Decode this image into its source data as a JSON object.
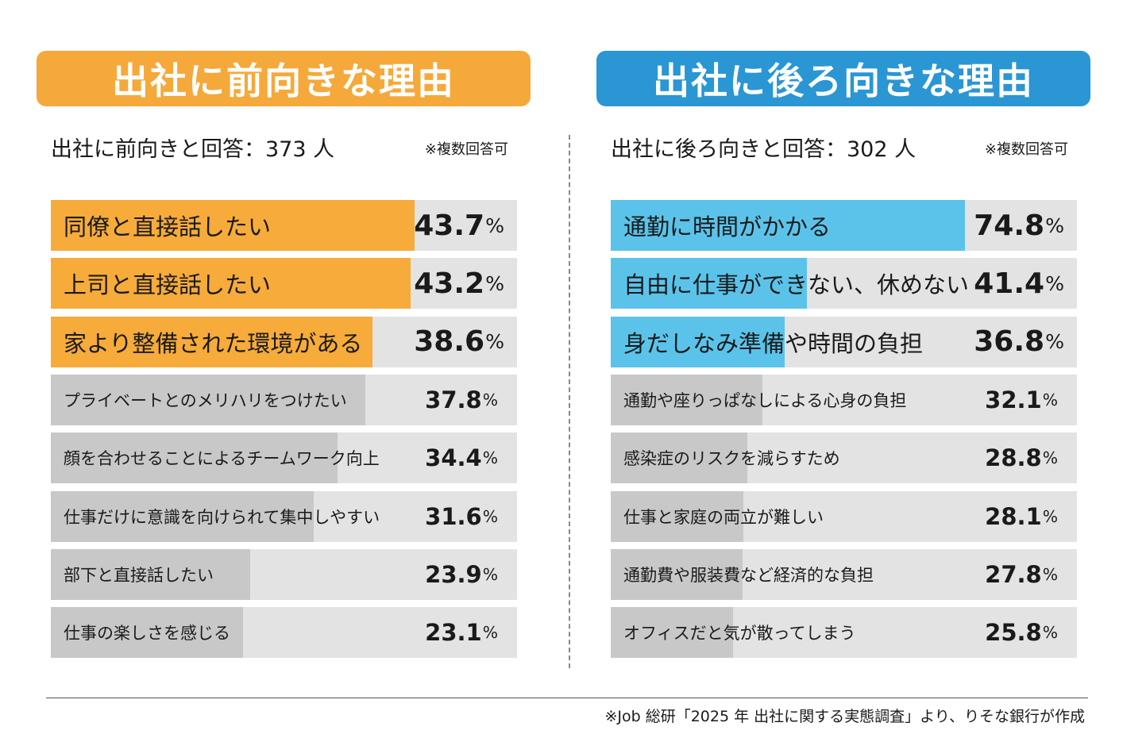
{
  "chart_data": [
    {
      "type": "bar",
      "orientation": "horizontal",
      "title": "出社に前向きな理由",
      "subtitle": "出社に前向きと回答：373 人",
      "note": "※複数回答可",
      "unit": "%",
      "xlim": [
        0,
        56
      ],
      "title_color": "#F5A93A",
      "highlight_color": "#F6AB3A",
      "bar_color": "#C8C8C8",
      "track_color": "#E3E3E3",
      "highlight_count": 3,
      "categories": [
        "同僚と直接話したい",
        "上司と直接話したい",
        "家より整備された環境がある",
        "プライベートとのメリハリをつけたい",
        "顔を合わせることによるチームワーク向上",
        "仕事だけに意識を向けられて集中しやすい",
        "部下と直接話したい",
        "仕事の楽しさを感じる"
      ],
      "values": [
        43.7,
        43.2,
        38.6,
        37.8,
        34.4,
        31.6,
        23.9,
        23.1
      ]
    },
    {
      "type": "bar",
      "orientation": "horizontal",
      "title": "出社に後ろ向きな理由",
      "subtitle": "出社に後ろ向きと回答：302 人",
      "note": "※複数回答可",
      "unit": "%",
      "xlim": [
        0,
        98.5
      ],
      "title_color": "#2A96D4",
      "highlight_color": "#5BC3EA",
      "bar_color": "#C8C8C8",
      "track_color": "#E3E3E3",
      "highlight_count": 3,
      "categories": [
        "通勤に時間がかかる",
        "自由に仕事ができない、休めない",
        "身だしなみ準備や時間の負担",
        "通勤や座りっぱなしによる心身の負担",
        "感染症のリスクを減らすため",
        "仕事と家庭の両立が難しい",
        "通勤費や服装費など経済的な負担",
        "オフィスだと気が散ってしまう"
      ],
      "values": [
        74.8,
        41.4,
        36.8,
        32.1,
        28.8,
        28.1,
        27.8,
        25.8
      ]
    }
  ],
  "footer": {
    "source": "※Job 総研「2025 年 出社に関する実態調査」より、りそな銀行が作成"
  }
}
